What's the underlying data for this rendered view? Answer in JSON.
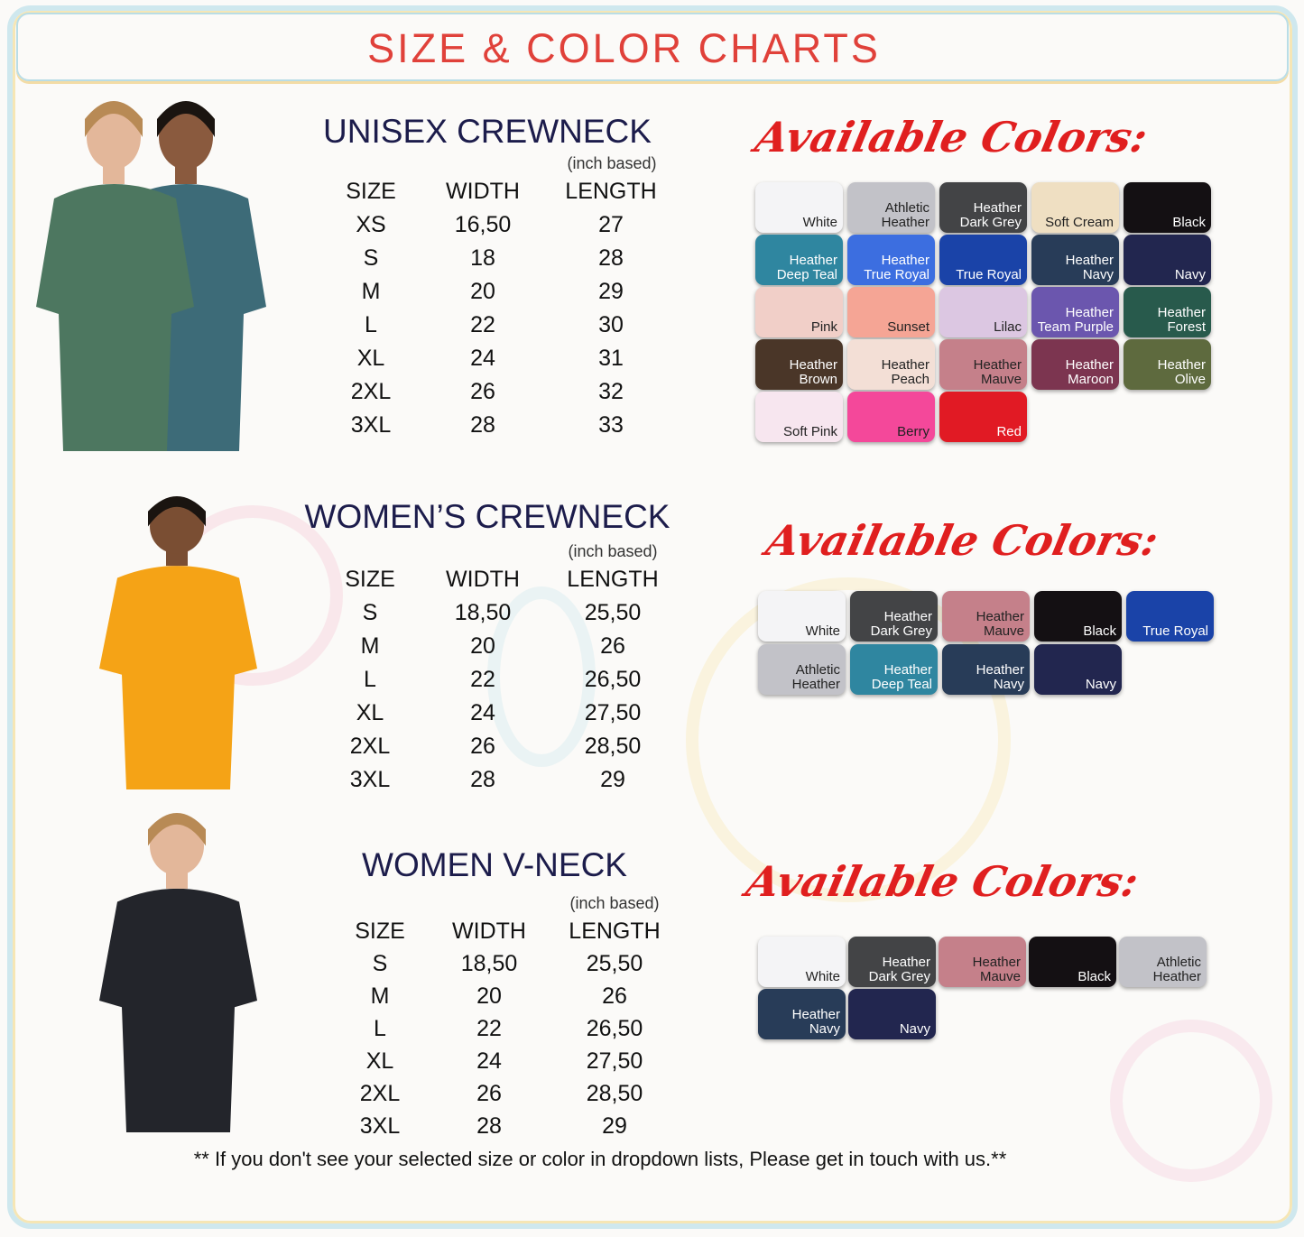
{
  "title": "SIZE & COLOR CHARTS",
  "colors_heading": "Available Colors:",
  "footer_note": "** If you don't see your selected size or color in dropdown lists, Please get in touch with us.**",
  "sections": [
    {
      "title": "UNISEX CREWNECK",
      "unit": "(inch based)",
      "headers": [
        "SIZE",
        "WIDTH",
        "LENGTH"
      ],
      "shirt_color": "#4d7760",
      "rows": [
        [
          "XS",
          "16,50",
          "27"
        ],
        [
          "S",
          "18",
          "28"
        ],
        [
          "M",
          "20",
          "29"
        ],
        [
          "L",
          "22",
          "30"
        ],
        [
          "XL",
          "24",
          "31"
        ],
        [
          "2XL",
          "26",
          "32"
        ],
        [
          "3XL",
          "28",
          "33"
        ]
      ],
      "swatches": [
        {
          "label": "White",
          "bg": "#f4f4f6",
          "fg": "#222"
        },
        {
          "label": "Athletic Heather",
          "bg": "#c2c2c8",
          "fg": "#222"
        },
        {
          "label": "Heather Dark Grey",
          "bg": "#434446",
          "fg": "#fff"
        },
        {
          "label": "Soft Cream",
          "bg": "#efdfc2",
          "fg": "#222"
        },
        {
          "label": "Black",
          "bg": "#141013",
          "fg": "#fff"
        },
        {
          "label": "Heather Deep Teal",
          "bg": "#2f86a0",
          "fg": "#fff"
        },
        {
          "label": "Heather True Royal",
          "bg": "#3c6ee0",
          "fg": "#fff"
        },
        {
          "label": "True Royal",
          "bg": "#1a43a8",
          "fg": "#fff"
        },
        {
          "label": "Heather Navy",
          "bg": "#283c58",
          "fg": "#fff"
        },
        {
          "label": "Navy",
          "bg": "#22264f",
          "fg": "#fff"
        },
        {
          "label": "Pink",
          "bg": "#f1cfc8",
          "fg": "#222"
        },
        {
          "label": "Sunset",
          "bg": "#f5a595",
          "fg": "#222"
        },
        {
          "label": "Lilac",
          "bg": "#dcc7e2",
          "fg": "#222"
        },
        {
          "label": "Heather Team Purple",
          "bg": "#6b56ae",
          "fg": "#fff"
        },
        {
          "label": "Heather Forest",
          "bg": "#285a4c",
          "fg": "#fff"
        },
        {
          "label": "Heather Brown",
          "bg": "#4a3628",
          "fg": "#fff"
        },
        {
          "label": "Heather Peach",
          "bg": "#f3dfd6",
          "fg": "#222"
        },
        {
          "label": "Heather Mauve",
          "bg": "#c5808a",
          "fg": "#222"
        },
        {
          "label": "Heather Maroon",
          "bg": "#7c3550",
          "fg": "#fff"
        },
        {
          "label": "Heather Olive",
          "bg": "#5e6a3e",
          "fg": "#fff"
        },
        {
          "label": "Soft Pink",
          "bg": "#f7e6ef",
          "fg": "#222"
        },
        {
          "label": "Berry",
          "bg": "#f4489a",
          "fg": "#222"
        },
        {
          "label": "Red",
          "bg": "#e11a24",
          "fg": "#fff"
        }
      ]
    },
    {
      "title": "WOMEN’S CREWNECK",
      "unit": "(inch based)",
      "headers": [
        "SIZE",
        "WIDTH",
        "LENGTH"
      ],
      "shirt_color": "#f5a316",
      "rows": [
        [
          "S",
          "18,50",
          "25,50"
        ],
        [
          "M",
          "20",
          "26"
        ],
        [
          "L",
          "22",
          "26,50"
        ],
        [
          "XL",
          "24",
          "27,50"
        ],
        [
          "2XL",
          "26",
          "28,50"
        ],
        [
          "3XL",
          "28",
          "29"
        ]
      ],
      "swatches": [
        {
          "label": "White",
          "bg": "#f4f4f6",
          "fg": "#222"
        },
        {
          "label": "Heather Dark Grey",
          "bg": "#434446",
          "fg": "#fff"
        },
        {
          "label": "Heather Mauve",
          "bg": "#c5808a",
          "fg": "#222"
        },
        {
          "label": "Black",
          "bg": "#141013",
          "fg": "#fff"
        },
        {
          "label": "True Royal",
          "bg": "#1a43a8",
          "fg": "#fff"
        },
        {
          "label": "Athletic Heather",
          "bg": "#c2c2c8",
          "fg": "#222"
        },
        {
          "label": "Heather Deep Teal",
          "bg": "#2f86a0",
          "fg": "#fff"
        },
        {
          "label": "Heather Navy",
          "bg": "#283c58",
          "fg": "#fff"
        },
        {
          "label": "Navy",
          "bg": "#22264f",
          "fg": "#fff"
        }
      ]
    },
    {
      "title": "WOMEN V-NECK",
      "unit": "(inch based)",
      "headers": [
        "SIZE",
        "WIDTH",
        "LENGTH"
      ],
      "shirt_color": "#23252b",
      "rows": [
        [
          "S",
          "18,50",
          "25,50"
        ],
        [
          "M",
          "20",
          "26"
        ],
        [
          "L",
          "22",
          "26,50"
        ],
        [
          "XL",
          "24",
          "27,50"
        ],
        [
          "2XL",
          "26",
          "28,50"
        ],
        [
          "3XL",
          "28",
          "29"
        ]
      ],
      "swatches": [
        {
          "label": "White",
          "bg": "#f4f4f6",
          "fg": "#222"
        },
        {
          "label": "Heather Dark Grey",
          "bg": "#434446",
          "fg": "#fff"
        },
        {
          "label": "Heather Mauve",
          "bg": "#c5808a",
          "fg": "#222"
        },
        {
          "label": "Black",
          "bg": "#141013",
          "fg": "#fff"
        },
        {
          "label": "Athletic Heather",
          "bg": "#c2c2c8",
          "fg": "#222"
        },
        {
          "label": "Heather Navy",
          "bg": "#283c58",
          "fg": "#fff"
        },
        {
          "label": "Navy",
          "bg": "#22264f",
          "fg": "#fff"
        }
      ]
    }
  ]
}
